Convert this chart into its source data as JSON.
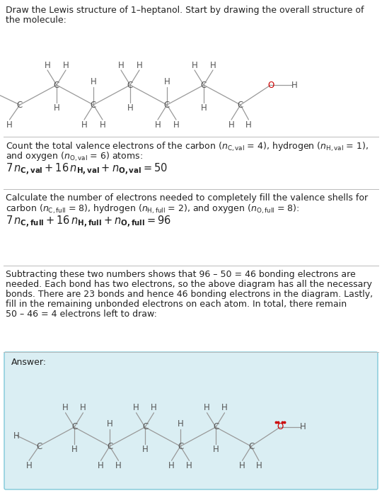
{
  "bg_color": "#ffffff",
  "answer_bg": "#daeef3",
  "answer_border": "#7ec8d8",
  "line_color": "#bbbbbb",
  "atom_color": "#555555",
  "oxygen_color": "#cc0000",
  "bond_color": "#999999",
  "text_color": "#222222",
  "title_line1": "Draw the Lewis structure of 1–heptanol. Start by drawing the overall structure of",
  "title_line2": "the molecule:",
  "s1_line1": "Count the total valence electrons of the carbon (",
  "s1_line2": "and oxygen (",
  "s2_line1": "Calculate the number of electrons needed to completely fill the valence shells for",
  "s2_line2": "carbon (",
  "s3_lines": [
    "Subtracting these two numbers shows that 96 – 50 = 46 bonding electrons are",
    "needed. Each bond has two electrons, so the above diagram has all the necessary",
    "bonds. There are 23 bonds and hence 46 bonding electrons in the diagram. Lastly,",
    "fill in the remaining unbonded electrons on each atom. In total, there remain",
    "50 – 46 = 4 electrons left to draw:"
  ],
  "answer_label": "Answer:"
}
